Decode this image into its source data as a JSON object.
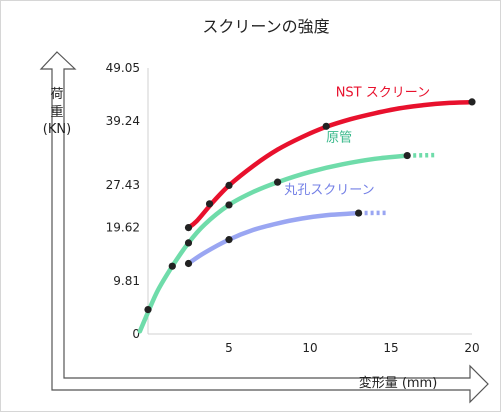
{
  "chart_data": {
    "type": "line",
    "title": "スクリーンの強度",
    "ylabel_line1": "荷",
    "ylabel_line2": "重",
    "ylabel_unit": "(KN)",
    "xlabel": "変形量 (mm)",
    "xlim": [
      0,
      20
    ],
    "ylim": [
      0,
      49.05
    ],
    "x_ticks": [
      {
        "value": 5,
        "label": "5"
      },
      {
        "value": 10,
        "label": "10"
      },
      {
        "value": 15,
        "label": "15"
      },
      {
        "value": 20,
        "label": "20"
      }
    ],
    "y_ticks": [
      {
        "value": 0,
        "label": "0"
      },
      {
        "value": 9.81,
        "label": "9.81"
      },
      {
        "value": 19.62,
        "label": "19.62"
      },
      {
        "value": 27.43,
        "label": "27.43"
      },
      {
        "value": 39.24,
        "label": "39.24"
      },
      {
        "value": 49.05,
        "label": "49.05"
      }
    ],
    "series": [
      {
        "name": "NST スクリーン",
        "color": "#e8112d",
        "label_color": "#e8112d",
        "width": 4.5,
        "curve": [
          [
            2.5,
            19.62
          ],
          [
            3,
            20.8
          ],
          [
            4,
            24.3
          ],
          [
            5,
            27.4
          ],
          [
            6.5,
            31
          ],
          [
            8,
            34
          ],
          [
            9.5,
            36.3
          ],
          [
            11,
            38.2
          ],
          [
            12.5,
            39.6
          ],
          [
            14,
            40.7
          ],
          [
            15.5,
            41.6
          ],
          [
            17,
            42.2
          ],
          [
            18.5,
            42.6
          ],
          [
            20,
            42.75
          ]
        ],
        "points": [
          [
            2.5,
            19.62
          ],
          [
            3.8,
            24
          ],
          [
            5,
            27.4
          ],
          [
            11,
            38.3
          ],
          [
            20,
            42.8
          ]
        ],
        "dotted_end": []
      },
      {
        "name": "原管",
        "color": "#6fdcaa",
        "label_color": "#3ab98b",
        "width": 4.5,
        "curve": [
          [
            -0.5,
            0.5
          ],
          [
            0,
            4
          ],
          [
            0.6,
            8
          ],
          [
            1.5,
            12.5
          ],
          [
            2.5,
            16.8
          ],
          [
            3.5,
            20.2
          ],
          [
            5,
            23.8
          ],
          [
            6.5,
            26.2
          ],
          [
            8,
            28
          ],
          [
            10,
            29.9
          ],
          [
            12,
            31.3
          ],
          [
            14,
            32.3
          ],
          [
            16,
            32.9
          ]
        ],
        "points": [
          [
            0,
            4.5
          ],
          [
            1.5,
            12.5
          ],
          [
            2.5,
            16.8
          ],
          [
            5,
            23.8
          ],
          [
            8,
            28
          ],
          [
            16,
            32.9
          ]
        ],
        "dotted_end": [
          [
            16,
            32.9
          ],
          [
            17.8,
            33
          ]
        ]
      },
      {
        "name": "丸孔スクリーン",
        "color": "#9aa6f2",
        "label_color": "#7480e6",
        "width": 4.5,
        "curve": [
          [
            2.5,
            13
          ],
          [
            3.5,
            15
          ],
          [
            5,
            17.4
          ],
          [
            6.5,
            19.2
          ],
          [
            8,
            20.4
          ],
          [
            9.5,
            21.3
          ],
          [
            11,
            21.9
          ],
          [
            13,
            22.3
          ]
        ],
        "points": [
          [
            2.5,
            13
          ],
          [
            5,
            17.4
          ],
          [
            13,
            22.3
          ]
        ],
        "dotted_end": [
          [
            13,
            22.3
          ],
          [
            14.8,
            22.35
          ]
        ]
      }
    ],
    "series_label_positions": [
      {
        "x": 14.5,
        "y": 43.8
      },
      {
        "x": 11.8,
        "y": 35.5
      },
      {
        "x": 11.2,
        "y": 25.8
      }
    ],
    "grid": false,
    "legend": "inline labels"
  }
}
